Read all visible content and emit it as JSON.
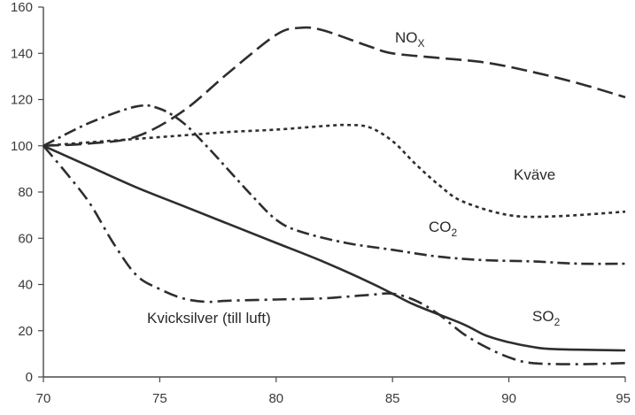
{
  "chart_data": {
    "type": "line",
    "xlim": [
      70,
      95
    ],
    "ylim": [
      0,
      160
    ],
    "x_ticks": [
      70,
      75,
      80,
      85,
      90,
      95
    ],
    "y_ticks": [
      0,
      20,
      40,
      60,
      80,
      100,
      120,
      140,
      160
    ],
    "grid": false,
    "series": [
      {
        "id": "nox",
        "name": "NOX",
        "label_main": "NO",
        "label_sub": "X",
        "dash": "18 7",
        "points": [
          [
            70,
            100
          ],
          [
            72,
            101
          ],
          [
            74,
            104
          ],
          [
            76,
            115
          ],
          [
            78,
            132
          ],
          [
            80,
            148
          ],
          [
            81,
            151
          ],
          [
            82,
            150
          ],
          [
            84,
            143
          ],
          [
            85,
            140
          ],
          [
            87,
            138
          ],
          [
            89,
            136
          ],
          [
            91,
            132
          ],
          [
            93,
            127
          ],
          [
            95,
            121
          ]
        ]
      },
      {
        "id": "kvave",
        "name": "Kväve",
        "label_main": "Kväve",
        "dash": "4 4",
        "points": [
          [
            70,
            100
          ],
          [
            72,
            101.5
          ],
          [
            74,
            103
          ],
          [
            76,
            104.5
          ],
          [
            78,
            106
          ],
          [
            80,
            107
          ],
          [
            82,
            108.5
          ],
          [
            83,
            109
          ],
          [
            84,
            108
          ],
          [
            85,
            102
          ],
          [
            86,
            92
          ],
          [
            87,
            83
          ],
          [
            88,
            76
          ],
          [
            90,
            70
          ],
          [
            92,
            69.5
          ],
          [
            95,
            71.5
          ]
        ]
      },
      {
        "id": "co2",
        "name": "CO2",
        "label_main": "CO",
        "label_sub": "2",
        "dash": "14 5 3 5",
        "points": [
          [
            70,
            100
          ],
          [
            72,
            110
          ],
          [
            74,
            117
          ],
          [
            75,
            116
          ],
          [
            76,
            110
          ],
          [
            77,
            100
          ],
          [
            78,
            89
          ],
          [
            79,
            78
          ],
          [
            80,
            68
          ],
          [
            81,
            63
          ],
          [
            83,
            58
          ],
          [
            85,
            55
          ],
          [
            87,
            52
          ],
          [
            89,
            50.5
          ],
          [
            91,
            50
          ],
          [
            93,
            49
          ],
          [
            95,
            49
          ]
        ]
      },
      {
        "id": "kvicksilver",
        "name": "Kvicksilver (till luft)",
        "label_main": "Kvicksilver (till luft)",
        "dash": "16 6 3 6",
        "points": [
          [
            70,
            100
          ],
          [
            71,
            88
          ],
          [
            72,
            75
          ],
          [
            73,
            58
          ],
          [
            74,
            44
          ],
          [
            75,
            38
          ],
          [
            76,
            34
          ],
          [
            77,
            32.5
          ],
          [
            78,
            33
          ],
          [
            80,
            33.5
          ],
          [
            82,
            34
          ],
          [
            84,
            35.5
          ],
          [
            85,
            36
          ],
          [
            86,
            33
          ],
          [
            87,
            27
          ],
          [
            88,
            19
          ],
          [
            89,
            13
          ],
          [
            90,
            8.5
          ],
          [
            91,
            6
          ],
          [
            93,
            5.5
          ],
          [
            95,
            6
          ]
        ]
      },
      {
        "id": "so2",
        "name": "SO2",
        "label_main": "SO",
        "label_sub": "2",
        "dash": "",
        "points": [
          [
            70,
            100
          ],
          [
            72,
            91
          ],
          [
            74,
            82
          ],
          [
            76,
            74
          ],
          [
            78,
            66
          ],
          [
            80,
            58
          ],
          [
            82,
            50
          ],
          [
            84,
            41
          ],
          [
            85,
            36
          ],
          [
            86,
            31
          ],
          [
            88,
            23
          ],
          [
            89,
            18
          ],
          [
            90,
            15
          ],
          [
            91,
            13
          ],
          [
            92,
            12
          ],
          [
            95,
            11.5
          ]
        ]
      }
    ]
  }
}
